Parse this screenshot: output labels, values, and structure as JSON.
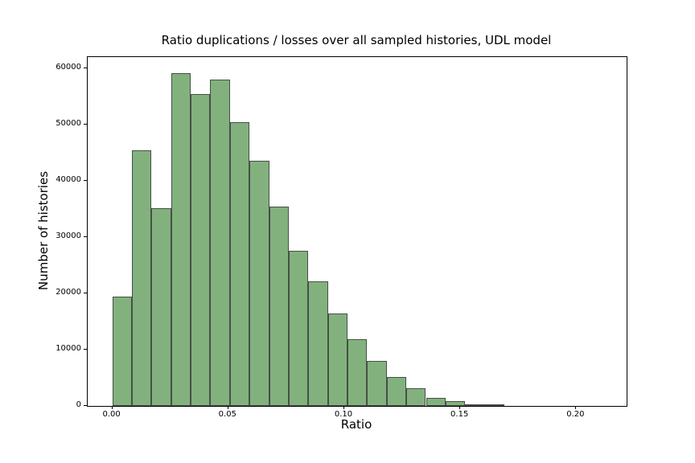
{
  "chart_data": {
    "type": "bar",
    "subtype": "histogram",
    "title": "Ratio duplications / losses over all sampled histories, UDL model",
    "xlabel": "Ratio",
    "ylabel": "Number of histories",
    "bin_start": 0.0,
    "bin_width": 0.00845,
    "counts": [
      19400,
      45500,
      35200,
      59100,
      55400,
      58000,
      50400,
      43600,
      35400,
      27600,
      22200,
      16500,
      11800,
      8000,
      5200,
      3100,
      1500,
      800,
      350,
      100
    ],
    "xlim": [
      -0.0106,
      0.2217
    ],
    "ylim": [
      0,
      62000
    ],
    "x_ticks": [
      {
        "value": 0.0,
        "label": "0.00"
      },
      {
        "value": 0.05,
        "label": "0.05"
      },
      {
        "value": 0.1,
        "label": "0.10"
      },
      {
        "value": 0.15,
        "label": "0.15"
      },
      {
        "value": 0.2,
        "label": "0.20"
      }
    ],
    "y_ticks": [
      {
        "value": 0,
        "label": "0"
      },
      {
        "value": 10000,
        "label": "10000"
      },
      {
        "value": 20000,
        "label": "20000"
      },
      {
        "value": 30000,
        "label": "30000"
      },
      {
        "value": 40000,
        "label": "40000"
      },
      {
        "value": 50000,
        "label": "50000"
      },
      {
        "value": 60000,
        "label": "60000"
      }
    ],
    "grid": false,
    "legend_position": "none",
    "bar_color": "#82b17e",
    "bar_edge_color": "#475046",
    "axes_color": "#000000",
    "background_color": "#ffffff"
  }
}
